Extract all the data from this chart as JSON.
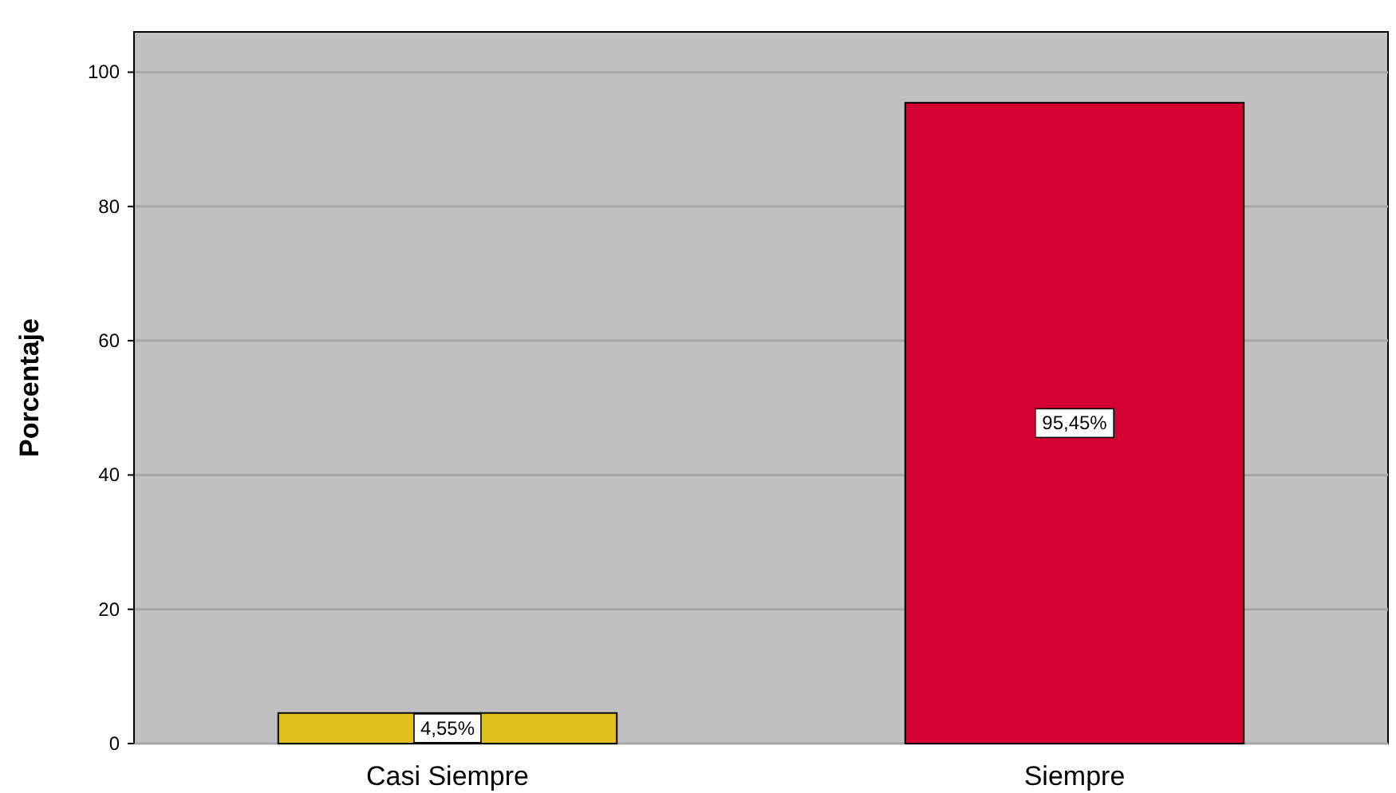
{
  "chart_data": {
    "type": "bar",
    "ylabel": "Porcentaje",
    "categories": [
      "Casi Siempre",
      "Siempre"
    ],
    "values": [
      4.55,
      95.45
    ],
    "colors": [
      "#e2c11f",
      "#d50032"
    ],
    "value_labels": [
      "4,55%",
      "95,45%"
    ],
    "ylim": [
      0,
      106
    ],
    "yticks": [
      0,
      20,
      40,
      60,
      80,
      100
    ],
    "grid": "y"
  }
}
